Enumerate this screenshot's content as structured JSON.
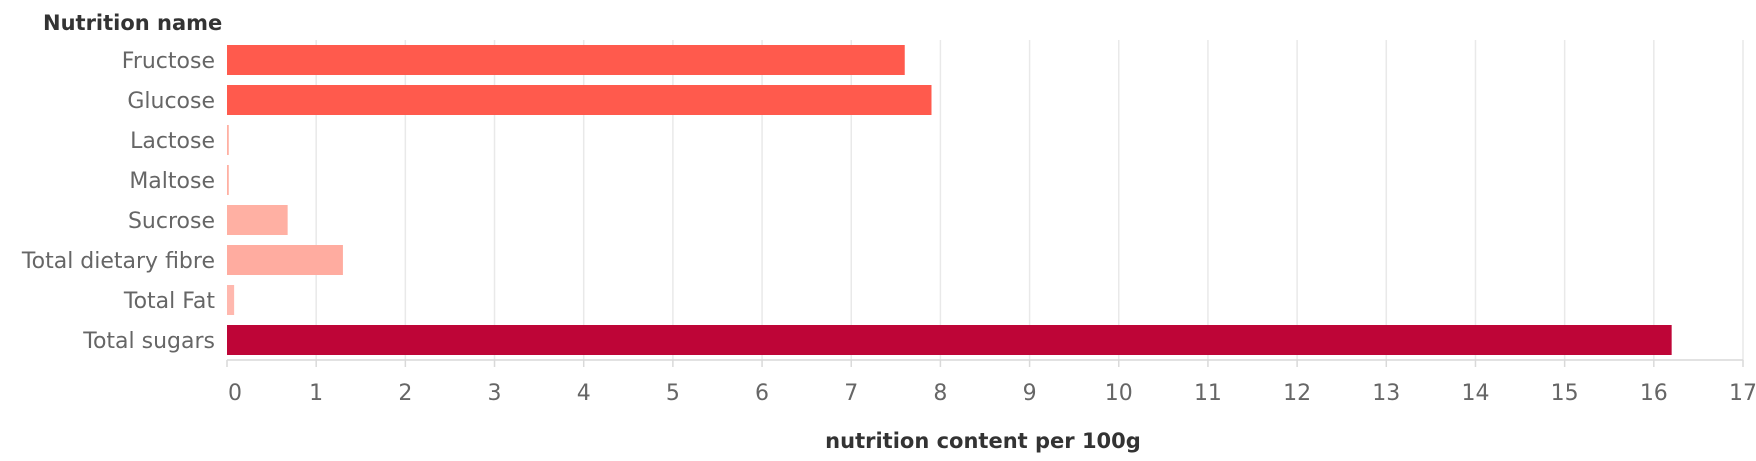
{
  "chart_data": {
    "type": "bar",
    "orientation": "horizontal",
    "ylabel": "Nutrition name",
    "xlabel": "nutrition content per 100g",
    "categories": [
      "Fructose",
      "Glucose",
      "Lactose",
      "Maltose",
      "Sucrose",
      "Total dietary fibre",
      "Total Fat",
      "Total sugars"
    ],
    "values": [
      7.6,
      7.9,
      0.02,
      0.02,
      0.68,
      1.3,
      0.08,
      16.2
    ],
    "bar_colors": [
      "#ff5a4d",
      "#ff5a4d",
      "#ffb0a3",
      "#ffb0a3",
      "#ffb0a3",
      "#ffaca0",
      "#ffb8ae",
      "#be0537"
    ],
    "xlim": [
      0,
      17
    ],
    "xticks": [
      "0",
      "1",
      "2",
      "3",
      "4",
      "5",
      "6",
      "7",
      "8",
      "9",
      "10",
      "11",
      "12",
      "13",
      "14",
      "15",
      "16",
      "17"
    ],
    "grid": true
  }
}
